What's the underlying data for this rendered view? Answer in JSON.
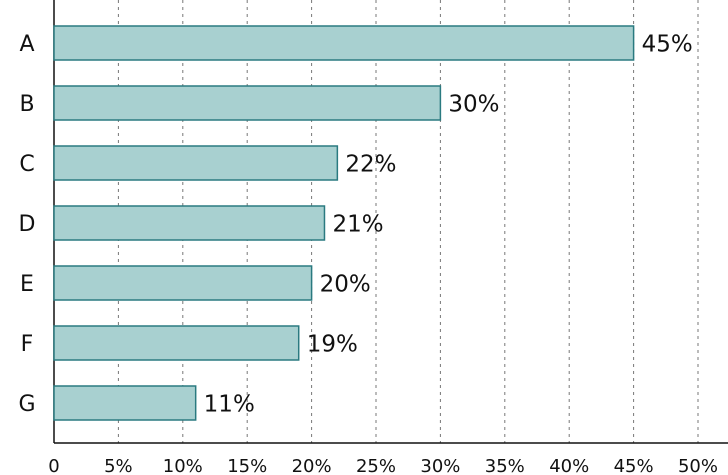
{
  "chart_data": {
    "type": "bar",
    "orientation": "horizontal",
    "categories": [
      "A",
      "B",
      "C",
      "D",
      "E",
      "F",
      "G"
    ],
    "values": [
      45,
      30,
      22,
      21,
      20,
      19,
      11
    ],
    "value_labels": [
      "45%",
      "30%",
      "22%",
      "21%",
      "20%",
      "19%",
      "11%"
    ],
    "color": "#a8d0d0",
    "edge_color": "#2a7a80",
    "xlim": [
      0,
      50
    ],
    "xticks": [
      0,
      {
        "value": 5,
        "label": "5%"
      },
      {
        "value": 10,
        "label": "10%"
      },
      {
        "value": 15,
        "label": "15%"
      },
      {
        "value": 20,
        "label": "20%"
      },
      {
        "value": 25,
        "label": "25%"
      },
      {
        "value": 30,
        "label": "30%"
      },
      {
        "value": 35,
        "label": "35%"
      },
      {
        "value": 40,
        "label": "40%"
      },
      {
        "value": 45,
        "label": "45%"
      },
      {
        "value": 50,
        "label": "50%"
      }
    ],
    "grid": true
  }
}
